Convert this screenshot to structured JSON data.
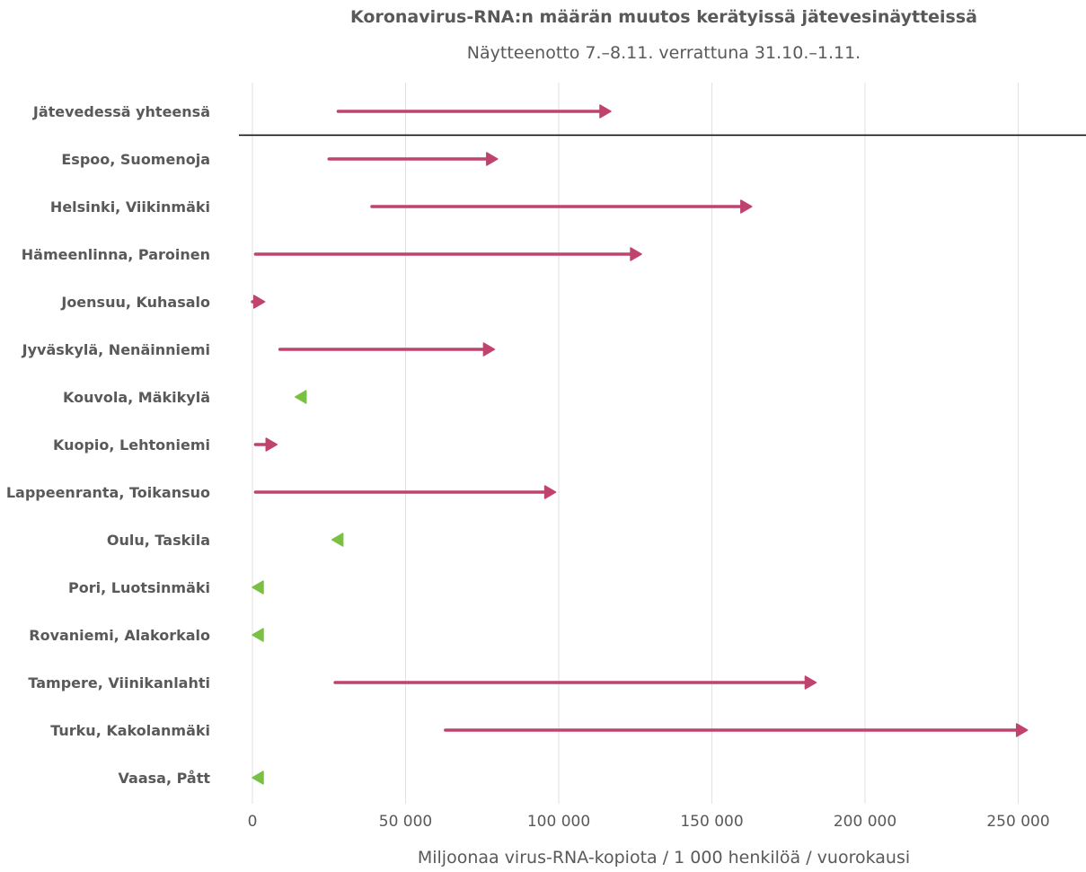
{
  "chart_data": {
    "type": "dumbbell-arrow",
    "title": "Koronavirus-RNA:n määrän muutos kerätyissä jätevesinäytteissä",
    "subtitle": "Näytteenotto 7.–8.11. verrattuna 31.10.–1.11.",
    "xlabel": "Miljoonaa virus-RNA-kopiota / 1 000 henkilöä / vuorokausi",
    "xlim": [
      -5000,
      275000
    ],
    "x_ticks": [
      {
        "value": 0,
        "label": "0"
      },
      {
        "value": 50000,
        "label": "50 000"
      },
      {
        "value": 100000,
        "label": "100 000"
      },
      {
        "value": 150000,
        "label": "150 000"
      },
      {
        "value": 200000,
        "label": "200 000"
      },
      {
        "value": 250000,
        "label": "250 000"
      }
    ],
    "grid": true,
    "colors": {
      "increase": "#c0426f",
      "decrease": "#7ac143",
      "grid": "#e2e2e2",
      "separator": "#000000",
      "text": "#595959"
    },
    "rows": [
      {
        "category": "Jätevedessä yhteensä",
        "from": 28000,
        "to": 117000
      },
      {
        "category": "Espoo, Suomenoja",
        "from": 25000,
        "to": 80000
      },
      {
        "category": "Helsinki, Viikinmäki",
        "from": 39000,
        "to": 163000
      },
      {
        "category": "Hämeenlinna, Paroinen",
        "from": 1000,
        "to": 127000
      },
      {
        "category": "Joensuu, Kuhasalo",
        "from": 0,
        "to": 4000
      },
      {
        "category": "Jyväskylä, Nenäinniemi",
        "from": 9000,
        "to": 79000
      },
      {
        "category": "Kouvola, Mäkikylä",
        "from": 17000,
        "to": 14000
      },
      {
        "category": "Kuopio, Lehtoniemi",
        "from": 1000,
        "to": 8000
      },
      {
        "category": "Lappeenranta, Toikansuo",
        "from": 1000,
        "to": 99000
      },
      {
        "category": "Oulu, Taskila",
        "from": 29000,
        "to": 26000
      },
      {
        "category": "Pori, Luotsinmäki",
        "from": 3000,
        "to": 0
      },
      {
        "category": "Rovaniemi, Alakorkalo",
        "from": 3000,
        "to": 0
      },
      {
        "category": "Tampere, Viinikanlahti",
        "from": 27000,
        "to": 184000
      },
      {
        "category": "Turku, Kakolanmäki",
        "from": 63000,
        "to": 253000
      },
      {
        "category": "Vaasa, Pått",
        "from": 3000,
        "to": 0
      }
    ]
  }
}
